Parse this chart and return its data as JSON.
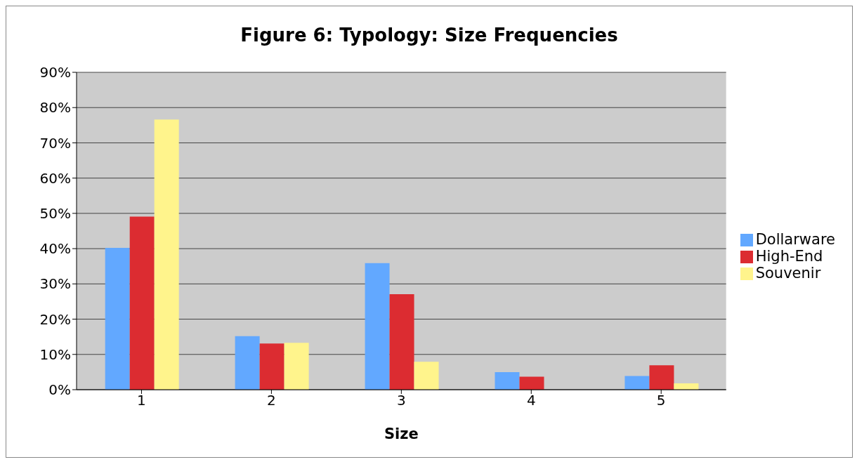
{
  "chart_data": {
    "type": "bar",
    "title": "Figure 6: Typology: Size Frequencies",
    "xlabel": "Size",
    "categories": [
      "1",
      "2",
      "3",
      "4",
      "5"
    ],
    "series": [
      {
        "name": "Dollarware",
        "color": "#62a8ff",
        "values": [
          40.2,
          15.2,
          35.9,
          5.0,
          3.9
        ]
      },
      {
        "name": "High-End",
        "color": "#dc2c31",
        "values": [
          49.1,
          13.1,
          27.1,
          3.7,
          6.9
        ]
      },
      {
        "name": "Souvenir",
        "color": "#fff48c",
        "values": [
          76.6,
          13.3,
          7.9,
          0,
          1.8
        ]
      }
    ],
    "ylim": [
      0,
      90
    ],
    "yticks": [
      {
        "value": 0,
        "label": "0%"
      },
      {
        "value": 10,
        "label": "10%"
      },
      {
        "value": 20,
        "label": "20%"
      },
      {
        "value": 30,
        "label": "30%"
      },
      {
        "value": 40,
        "label": "40%"
      },
      {
        "value": 50,
        "label": "50%"
      },
      {
        "value": 60,
        "label": "60%"
      },
      {
        "value": 70,
        "label": "70%"
      },
      {
        "value": 80,
        "label": "80%"
      },
      {
        "value": 90,
        "label": "90%"
      }
    ],
    "grid": "y",
    "legend": "right"
  }
}
